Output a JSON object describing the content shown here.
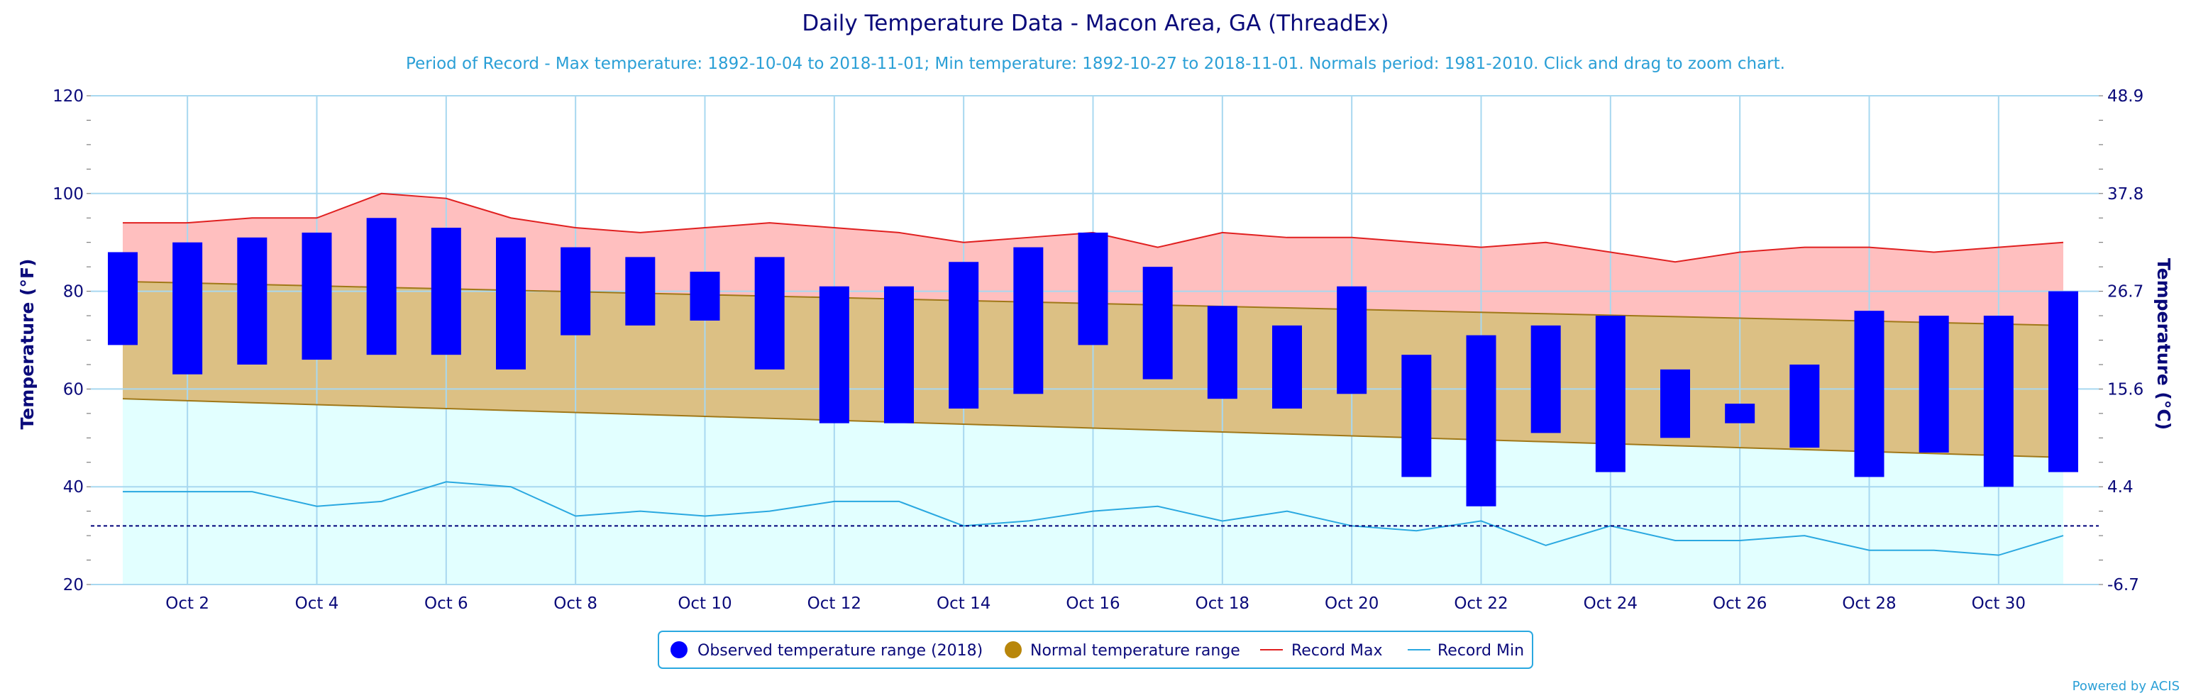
{
  "chart_data": {
    "type": "bar",
    "title": "Daily Temperature Data - Macon Area, GA (ThreadEx)",
    "subtitle": "Period of Record - Max temperature: 1892-10-04 to 2018-11-01; Min temperature: 1892-10-27 to 2018-11-01. Normals period: 1981-2010. Click and drag to zoom chart.",
    "ylabel": "Temperature (°F)",
    "ylabel_right": "Temperature (°C)",
    "ylim": [
      20,
      120
    ],
    "xlim": [
      1,
      31
    ],
    "y_ticks": [
      "20",
      "40",
      "60",
      "80",
      "100",
      "120"
    ],
    "y_ticks_right": [
      "-6.7",
      "4.4",
      "15.6",
      "26.7",
      "37.8",
      "48.9"
    ],
    "x_ticks": [
      {
        "day": 2,
        "label": "Oct 2"
      },
      {
        "day": 4,
        "label": "Oct 4"
      },
      {
        "day": 6,
        "label": "Oct 6"
      },
      {
        "day": 8,
        "label": "Oct 8"
      },
      {
        "day": 10,
        "label": "Oct 10"
      },
      {
        "day": 12,
        "label": "Oct 12"
      },
      {
        "day": 14,
        "label": "Oct 14"
      },
      {
        "day": 16,
        "label": "Oct 16"
      },
      {
        "day": 18,
        "label": "Oct 18"
      },
      {
        "day": 20,
        "label": "Oct 20"
      },
      {
        "day": 22,
        "label": "Oct 22"
      },
      {
        "day": 24,
        "label": "Oct 24"
      },
      {
        "day": 26,
        "label": "Oct 26"
      },
      {
        "day": 28,
        "label": "Oct 28"
      },
      {
        "day": 30,
        "label": "Oct 30"
      }
    ],
    "freezing_line": 32,
    "grid": true,
    "legend_position": "bottom-center",
    "days": [
      1,
      2,
      3,
      4,
      5,
      6,
      7,
      8,
      9,
      10,
      11,
      12,
      13,
      14,
      15,
      16,
      17,
      18,
      19,
      20,
      21,
      22,
      23,
      24,
      25,
      26,
      27,
      28,
      29,
      30,
      31
    ],
    "series": [
      {
        "name": "Observed temperature range (2018)",
        "color": "#0000ff",
        "high": [
          88,
          90,
          91,
          92,
          95,
          93,
          91,
          89,
          87,
          84,
          87,
          81,
          81,
          86,
          89,
          92,
          85,
          77,
          73,
          81,
          67,
          71,
          73,
          75,
          64,
          57,
          65,
          76,
          75,
          75,
          80
        ],
        "low": [
          69,
          63,
          65,
          66,
          67,
          67,
          64,
          71,
          73,
          74,
          64,
          53,
          53,
          56,
          59,
          69,
          62,
          58,
          56,
          59,
          42,
          36,
          51,
          43,
          50,
          53,
          48,
          42,
          47,
          40,
          43
        ]
      },
      {
        "name": "Normal temperature range",
        "color": "#b8860b",
        "high": [
          82,
          81.7,
          81.4,
          81.1,
          80.8,
          80.5,
          80.2,
          79.9,
          79.6,
          79.3,
          79,
          78.7,
          78.4,
          78.1,
          77.8,
          77.5,
          77.2,
          76.9,
          76.6,
          76.3,
          76,
          75.7,
          75.4,
          75.1,
          74.8,
          74.5,
          74.2,
          73.9,
          73.6,
          73.3,
          73
        ],
        "low": [
          58,
          57.6,
          57.2,
          56.8,
          56.4,
          56,
          55.6,
          55.2,
          54.8,
          54.4,
          54,
          53.6,
          53.2,
          52.8,
          52.4,
          52,
          51.6,
          51.2,
          50.8,
          50.4,
          50,
          49.6,
          49.2,
          48.8,
          48.4,
          48,
          47.6,
          47.2,
          46.8,
          46.4,
          46
        ]
      },
      {
        "name": "Record Max",
        "color": "#e02020",
        "values": [
          94,
          94,
          95,
          95,
          100,
          99,
          95,
          93,
          92,
          93,
          94,
          93,
          92,
          90,
          91,
          92,
          89,
          92,
          91,
          91,
          90,
          89,
          90,
          88,
          86,
          88,
          89,
          89,
          88,
          89,
          90
        ]
      },
      {
        "name": "Record Min",
        "color": "#2aa8e0",
        "values": [
          39,
          39,
          39,
          36,
          37,
          41,
          40,
          34,
          35,
          34,
          35,
          37,
          37,
          32,
          33,
          35,
          36,
          33,
          35,
          32,
          31,
          33,
          28,
          32,
          29,
          29,
          30,
          27,
          27,
          26,
          30
        ]
      }
    ],
    "colors": {
      "record_band": "#ffbfbf",
      "normal_band": "#dcc084",
      "low_band": "#e2ffff",
      "grid": "#a8d8f0",
      "axis_text": "#0a0a7a",
      "subtitle": "#2a9fd6"
    }
  },
  "legend": {
    "items": [
      {
        "label": "Observed temperature range (2018)",
        "marker": "circle",
        "color": "#0000ff"
      },
      {
        "label": "Normal temperature range",
        "marker": "circle",
        "color": "#b8860b"
      },
      {
        "label": "Record Max",
        "marker": "line",
        "color": "#e02020"
      },
      {
        "label": "Record Min",
        "marker": "line",
        "color": "#2aa8e0"
      }
    ]
  },
  "credit": "Powered by ACIS"
}
